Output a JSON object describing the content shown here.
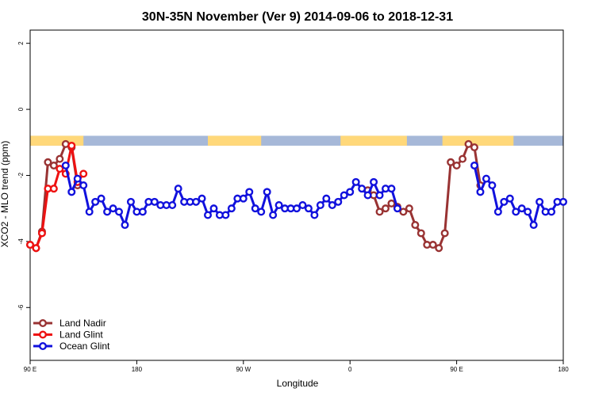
{
  "chart_data": {
    "type": "line",
    "title": "30N-35N November (Ver 9)   2014-09-06 to 2018-12-31",
    "xlabel": "Longitude",
    "ylabel": "XCO2 - MLO trend (ppm)",
    "xlim": [
      0,
      450
    ],
    "ylim": [
      -7.6,
      2.4
    ],
    "x_ticks": [
      {
        "value": 0,
        "label": "90 E"
      },
      {
        "value": 90,
        "label": "180"
      },
      {
        "value": 180,
        "label": "90 W"
      },
      {
        "value": 270,
        "label": "0"
      },
      {
        "value": 360,
        "label": "90 E"
      },
      {
        "value": 450,
        "label": "180"
      }
    ],
    "y_ticks": [
      {
        "value": 2,
        "label": "2"
      },
      {
        "value": 0,
        "label": "0"
      },
      {
        "value": -2,
        "label": "-2"
      },
      {
        "value": -4,
        "label": "-4"
      },
      {
        "value": -6,
        "label": "-6"
      }
    ],
    "grid": false,
    "legend": "bottom-left",
    "land_mask": {
      "y_range": [
        -1.1,
        -0.8
      ],
      "ocean_color": "#a6b8d8",
      "land_color": "#ffd87a",
      "land_segments": [
        [
          0,
          45
        ],
        [
          150,
          195
        ],
        [
          262,
          318
        ],
        [
          348,
          408
        ]
      ]
    },
    "series": [
      {
        "name": "Land Nadir",
        "color": "#993333",
        "x": [
          0,
          5,
          10,
          15,
          20,
          25,
          30,
          35,
          40,
          45,
          285,
          290,
          295,
          300,
          305,
          310,
          315,
          320,
          325,
          330,
          335,
          340,
          345,
          350,
          355,
          360,
          365,
          370,
          375,
          380,
          385,
          390,
          395,
          400,
          405,
          410,
          415,
          420,
          425,
          430,
          435
        ],
        "y": [
          -4.1,
          -4.2,
          -3.7,
          -1.6,
          -1.7,
          -1.5,
          -1.05,
          -1.15,
          -2.3,
          null,
          -2.45,
          -2.6,
          -3.1,
          -3.0,
          -2.85,
          -2.95,
          -3.1,
          -3.0,
          -3.5,
          -3.75,
          -4.1,
          -4.1,
          -4.2,
          -3.75,
          -1.6,
          -1.7,
          -1.5,
          -1.05,
          -1.15,
          -2.3,
          null,
          null,
          null,
          null,
          null,
          null,
          null,
          null,
          null,
          null,
          null
        ]
      },
      {
        "name": "Land Glint",
        "color": "#ee1111",
        "x": [
          0,
          5,
          10,
          15,
          20,
          25,
          30,
          35,
          40,
          45
        ],
        "y": [
          -4.1,
          -4.2,
          -3.75,
          -2.4,
          -2.4,
          -1.8,
          -1.95,
          -1.1,
          -2.2,
          -1.95
        ]
      },
      {
        "name": "Ocean Glint",
        "color": "#1111dd",
        "x": [
          30,
          35,
          40,
          45,
          50,
          55,
          60,
          65,
          70,
          75,
          80,
          85,
          90,
          95,
          100,
          105,
          110,
          115,
          120,
          125,
          130,
          135,
          140,
          145,
          150,
          155,
          160,
          165,
          170,
          175,
          180,
          185,
          190,
          195,
          200,
          205,
          210,
          215,
          220,
          225,
          230,
          235,
          240,
          245,
          250,
          255,
          260,
          265,
          270,
          275,
          280,
          285,
          290,
          295,
          300,
          305,
          310,
          315,
          320,
          325,
          330,
          335,
          340,
          345,
          350,
          355,
          360,
          365,
          370,
          375,
          380,
          385,
          390,
          395,
          400,
          405,
          410,
          415,
          420,
          425,
          430,
          435,
          440,
          445,
          450
        ],
        "y": [
          -1.7,
          -2.5,
          -2.1,
          -2.3,
          -3.1,
          -2.8,
          -2.7,
          -3.1,
          -3.0,
          -3.1,
          -3.5,
          -2.8,
          -3.1,
          -3.1,
          -2.8,
          -2.8,
          -2.9,
          -2.9,
          -2.9,
          -2.4,
          -2.8,
          -2.8,
          -2.8,
          -2.7,
          -3.2,
          -3.0,
          -3.2,
          -3.2,
          -3.0,
          -2.7,
          -2.7,
          -2.5,
          -3.0,
          -3.1,
          -2.5,
          -3.2,
          -2.9,
          -3.0,
          -3.0,
          -3.0,
          -2.9,
          -3.0,
          -3.2,
          -2.9,
          -2.7,
          -2.9,
          -2.8,
          -2.6,
          -2.5,
          -2.2,
          -2.4,
          -2.6,
          -2.2,
          -2.6,
          -2.4,
          -2.4,
          -3.0,
          null,
          null,
          null,
          null,
          null,
          null,
          null,
          null,
          null,
          null,
          null,
          null,
          -1.7,
          -2.5,
          -2.1,
          -2.3,
          -3.1,
          -2.8,
          -2.7,
          -3.1,
          -3.0,
          -3.1,
          -3.5,
          -2.8,
          -3.1,
          -3.1,
          -2.8,
          -2.8
        ]
      }
    ]
  }
}
